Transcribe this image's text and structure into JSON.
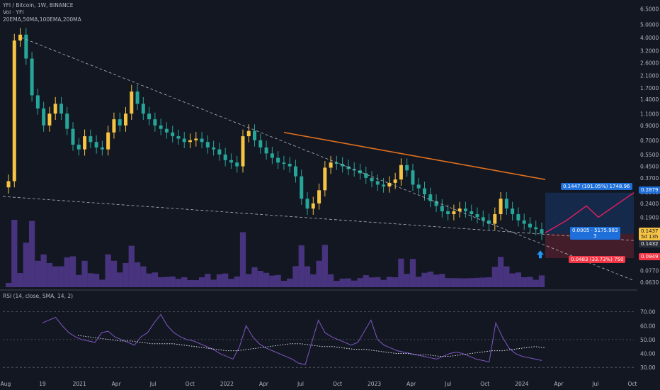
{
  "header": {
    "symbol_line": "YFI / Bitcoin, 1W, BINANCE",
    "volume_line": "Vol · YFI",
    "ema_line": "20EMA,50MA,100EMA,200MA",
    "rsi_line": "RSI (14, close, SMA, 14, 2)"
  },
  "price_axis": {
    "labels": [
      "6.5000",
      "5.0000",
      "4.0000",
      "3.2000",
      "2.6000",
      "2.1000",
      "1.7000",
      "1.4000",
      "1.1000",
      "0.9000",
      "0.7000",
      "0.5500",
      "0.4500",
      "0.3700",
      "0.2900",
      "0.2400",
      "0.1900",
      "0.1500",
      "0.1200",
      "0.0970",
      "0.0770",
      "0.0630"
    ],
    "values": [
      6.5,
      5.0,
      4.0,
      3.2,
      2.6,
      2.1,
      1.7,
      1.4,
      1.1,
      0.9,
      0.7,
      0.55,
      0.45,
      0.37,
      0.29,
      0.24,
      0.19,
      0.15,
      0.12,
      0.097,
      0.077,
      0.063
    ]
  },
  "rsi_axis": {
    "labels": [
      "70.00",
      "60.00",
      "50.00",
      "40.00",
      "30.00"
    ],
    "values": [
      70,
      60,
      50,
      40,
      30
    ]
  },
  "time_axis": {
    "labels": [
      "Aug",
      "19",
      "2021",
      "Apr",
      "Jul",
      "Oct",
      "2022",
      "Apr",
      "Jul",
      "Oct",
      "2023",
      "Apr",
      "Jul",
      "Oct",
      "2024",
      "Apr",
      "Jul",
      "Oct"
    ]
  },
  "badges": {
    "target": "0.2879",
    "current_price": "0.1437",
    "countdown": "5d 13h",
    "last_close": "0.1432",
    "stop": "0.0949"
  },
  "position_tool": {
    "profit_label": "0.1447 (101.05%) 1748.96",
    "center_label_1": "0.0005 · 5175.983",
    "center_label_2": "3",
    "loss_label": "0.0483 (33.73%) 750"
  },
  "colors": {
    "up": "#f6c343",
    "down": "#26a69a",
    "ma": "#e0701e",
    "rsi": "#7e57c2",
    "vol": "#5b3e9e",
    "profit": "#1e6fd9",
    "loss": "#f23645",
    "path": "#e91e63",
    "arrow": "#2196f3"
  },
  "chart_data": {
    "type": "candlestick",
    "title": "YFI / Bitcoin, 1W, BINANCE",
    "y_scale": "log",
    "ylim": [
      0.058,
      7.2
    ],
    "x_range": [
      "Aug 2020",
      "Oct 2024"
    ],
    "series_close": [
      0.35,
      3.8,
      4.2,
      2.8,
      1.5,
      1.2,
      0.9,
      1.1,
      1.3,
      1.1,
      0.85,
      0.65,
      0.6,
      0.75,
      0.68,
      0.62,
      0.6,
      0.8,
      1.0,
      0.9,
      1.1,
      1.6,
      1.3,
      1.1,
      1.0,
      0.9,
      0.85,
      0.8,
      0.75,
      0.72,
      0.68,
      0.7,
      0.72,
      0.68,
      0.62,
      0.6,
      0.55,
      0.5,
      0.48,
      0.45,
      0.75,
      0.82,
      0.7,
      0.62,
      0.56,
      0.52,
      0.48,
      0.47,
      0.45,
      0.38,
      0.26,
      0.22,
      0.24,
      0.3,
      0.44,
      0.48,
      0.47,
      0.45,
      0.43,
      0.42,
      0.4,
      0.37,
      0.35,
      0.33,
      0.32,
      0.34,
      0.36,
      0.46,
      0.42,
      0.33,
      0.31,
      0.28,
      0.25,
      0.23,
      0.21,
      0.2,
      0.21,
      0.22,
      0.21,
      0.2,
      0.19,
      0.18,
      0.17,
      0.2,
      0.26,
      0.22,
      0.2,
      0.18,
      0.17,
      0.16,
      0.155,
      0.1437
    ],
    "ma_200": {
      "name": "200MA",
      "from_index": 47,
      "start": 0.8,
      "end": 0.36
    },
    "rsi": [
      62,
      64,
      66,
      60,
      55,
      52,
      50,
      49,
      48,
      55,
      56,
      52,
      50,
      48,
      46,
      52,
      55,
      62,
      68,
      60,
      55,
      52,
      50,
      49,
      47,
      45,
      43,
      40,
      38,
      36,
      45,
      60,
      52,
      47,
      44,
      42,
      40,
      38,
      36,
      33,
      32,
      48,
      64,
      55,
      52,
      50,
      48,
      46,
      48,
      56,
      64,
      50,
      46,
      44,
      42,
      41,
      40,
      39,
      38,
      37,
      36,
      38,
      40,
      41,
      40,
      38,
      36,
      35,
      34,
      62,
      52,
      44,
      40,
      38,
      37,
      36,
      35
    ],
    "rsi_sma": [
      53,
      52,
      51,
      50,
      49,
      49,
      48,
      47,
      47,
      47,
      46,
      45,
      44,
      43,
      42,
      42,
      43,
      44,
      45,
      46,
      47,
      47,
      46,
      45,
      45,
      44,
      43,
      43,
      42,
      41,
      40,
      40,
      39,
      39,
      38,
      38,
      39,
      40,
      41,
      42,
      42,
      43,
      44,
      45,
      44
    ],
    "trendlines": "falling wedge (dashed)",
    "position": {
      "type": "long",
      "entry": 0.1432,
      "target": 0.2879,
      "stop": 0.0949
    }
  }
}
